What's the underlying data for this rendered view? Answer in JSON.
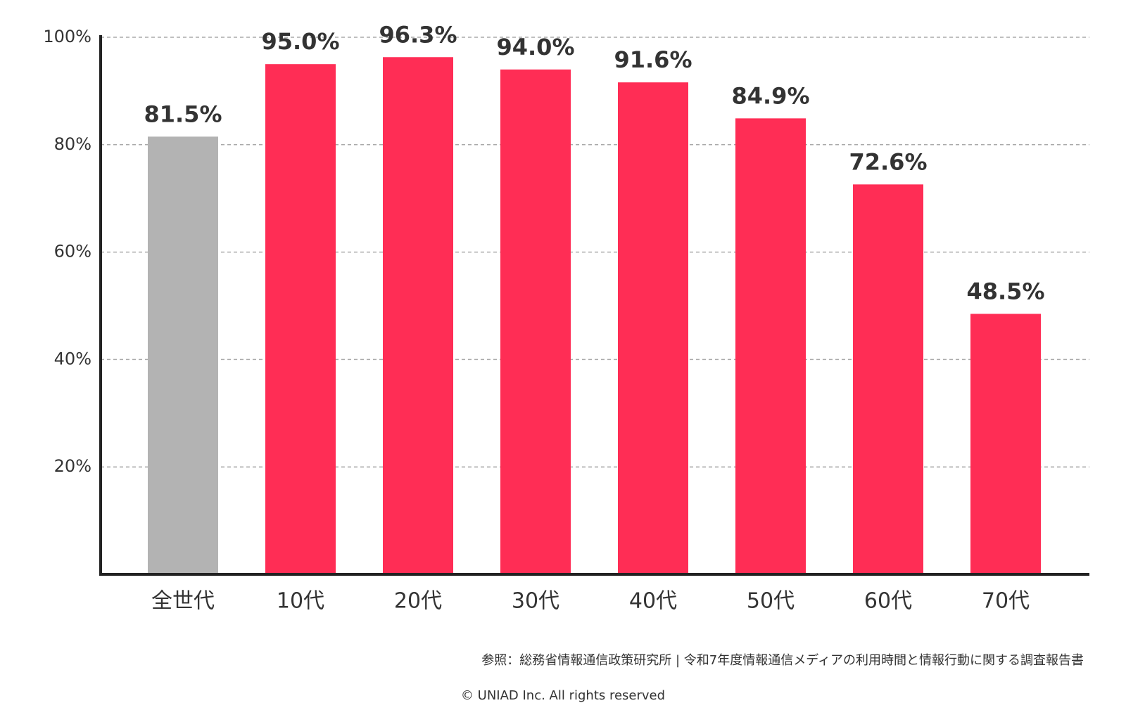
{
  "chart_data": {
    "type": "bar",
    "categories": [
      "全世代",
      "10代",
      "20代",
      "30代",
      "40代",
      "50代",
      "60代",
      "70代"
    ],
    "values": [
      81.5,
      95.0,
      96.3,
      94.0,
      91.6,
      84.9,
      72.6,
      48.5
    ],
    "value_labels": [
      "81.5%",
      "95.0%",
      "96.3%",
      "94.0%",
      "91.6%",
      "84.9%",
      "72.6%",
      "48.5%"
    ],
    "colors": [
      "#b3b3b3",
      "#ff2d55",
      "#ff2d55",
      "#ff2d55",
      "#ff2d55",
      "#ff2d55",
      "#ff2d55",
      "#ff2d55"
    ],
    "ylim": [
      0,
      100
    ],
    "yticks": [
      {
        "value": 20,
        "label": "20%"
      },
      {
        "value": 40,
        "label": "40%"
      },
      {
        "value": 60,
        "label": "60%"
      },
      {
        "value": 80,
        "label": "80%"
      },
      {
        "value": 100,
        "label": "100%"
      }
    ],
    "grid": true,
    "source": "参照：総務省情報通信政策研究所 | 令和7年度情報通信メディアの利用時間と情報行動に関する調査報告書",
    "copyright": "© UNIAD Inc. All rights reserved"
  }
}
